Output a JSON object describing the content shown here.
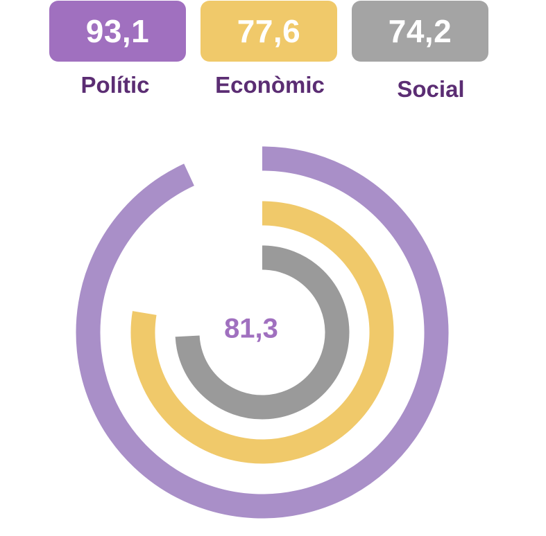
{
  "chart_data": {
    "type": "radial_bar",
    "overall": "81,3",
    "series": [
      {
        "name": "Polític",
        "display": "93,1",
        "value": 93.1,
        "color": "#a98fc8",
        "tile_color": "#a070bf"
      },
      {
        "name": "Econòmic",
        "display": "77,6",
        "value": 77.6,
        "color": "#f0c96a",
        "tile_color": "#f0c96a"
      },
      {
        "name": "Social",
        "display": "74,2",
        "value": 74.2,
        "color": "#9a9a9a",
        "tile_color": "#a4a4a4"
      }
    ],
    "max": 100
  },
  "overall_color": "#a070bf"
}
